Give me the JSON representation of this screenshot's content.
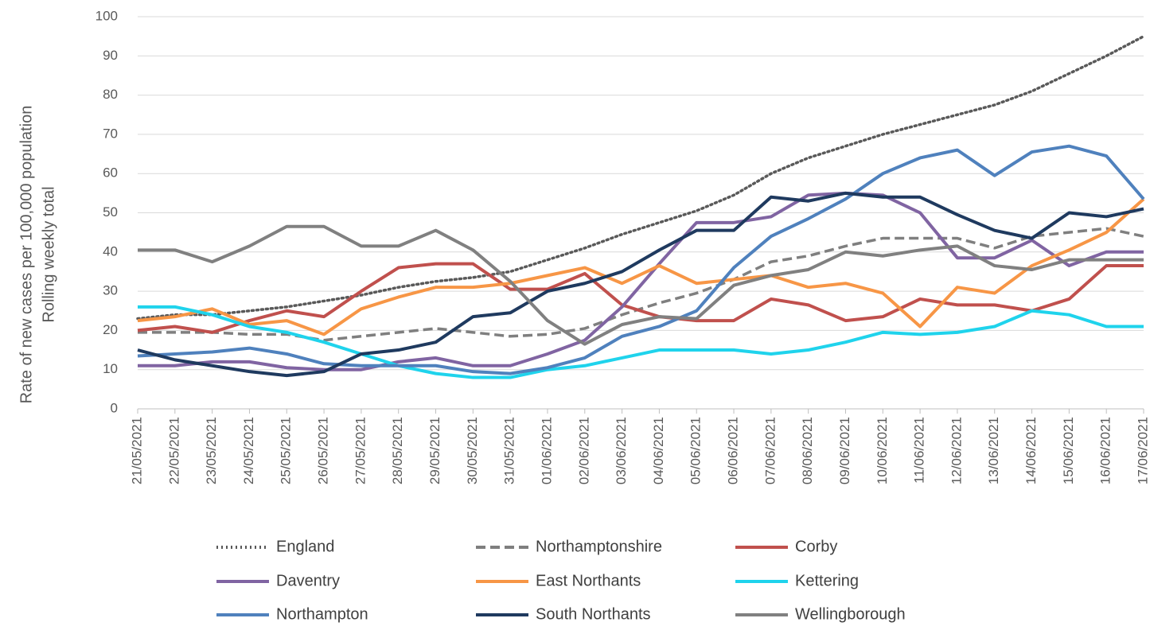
{
  "chart_data": {
    "type": "line",
    "y_label": [
      "Rate of new cases per 100,000 population",
      "Rolling weekly total"
    ],
    "categories": [
      "21/05/2021",
      "22/05/2021",
      "23/05/2021",
      "24/05/2021",
      "25/05/2021",
      "26/05/2021",
      "27/05/2021",
      "28/05/2021",
      "29/05/2021",
      "30/05/2021",
      "31/05/2021",
      "01/06/2021",
      "02/06/2021",
      "03/06/2021",
      "04/06/2021",
      "05/06/2021",
      "06/06/2021",
      "07/06/2021",
      "08/06/2021",
      "09/06/2021",
      "10/06/2021",
      "11/06/2021",
      "12/06/2021",
      "13/06/2021",
      "14/06/2021",
      "15/06/2021",
      "16/06/2021",
      "17/06/2021"
    ],
    "ylim": [
      0,
      100
    ],
    "yticks": [
      0,
      10,
      20,
      30,
      40,
      50,
      60,
      70,
      80,
      90,
      100
    ],
    "grid": true,
    "legend": "bottom",
    "series": [
      {
        "name": "England",
        "color": "#595959",
        "style": "dotted",
        "values": [
          23,
          24,
          24,
          25,
          26,
          27.5,
          29,
          31,
          32.5,
          33.5,
          35,
          38,
          41,
          44.5,
          47.5,
          50.5,
          54.5,
          60,
          64,
          67,
          70,
          72.5,
          75,
          77.5,
          81,
          85.5,
          90,
          95
        ]
      },
      {
        "name": "Northamptonshire",
        "color": "#7f7f7f",
        "style": "dashed",
        "values": [
          19.5,
          19.5,
          19.5,
          19,
          19,
          17.5,
          18.5,
          19.5,
          20.5,
          19.5,
          18.5,
          19,
          20.5,
          24,
          27,
          29.5,
          33,
          37.5,
          39,
          41.5,
          43.5,
          43.5,
          43.5,
          41,
          44,
          45,
          46,
          44
        ]
      },
      {
        "name": "Corby",
        "color": "#c0504d",
        "style": "solid",
        "values": [
          20,
          21,
          19.5,
          22.5,
          25,
          23.5,
          30,
          36,
          37,
          37,
          30.5,
          30.5,
          34.5,
          26.5,
          23.5,
          22.5,
          22.5,
          28,
          26.5,
          22.5,
          23.5,
          28,
          26.5,
          26.5,
          25,
          28,
          36.5,
          36.5
        ]
      },
      {
        "name": "Daventry",
        "color": "#8064a2",
        "style": "solid",
        "values": [
          11,
          11,
          12,
          12,
          10.5,
          10,
          10,
          12,
          13,
          11,
          11,
          14,
          17.5,
          26,
          37,
          47.5,
          47.5,
          49,
          54.5,
          55,
          54.5,
          50,
          38.5,
          38.5,
          43,
          36.5,
          40,
          40
        ]
      },
      {
        "name": "East Northants",
        "color": "#f79646",
        "style": "solid",
        "values": [
          22.5,
          23.5,
          25.5,
          21.5,
          22.5,
          19,
          25.5,
          28.5,
          31,
          31,
          32,
          34,
          36,
          32,
          36.5,
          32,
          33,
          34,
          31,
          32,
          29.5,
          21,
          31,
          29.5,
          36.5,
          40.5,
          45,
          53.5
        ]
      },
      {
        "name": "Kettering",
        "color": "#1fd3ec",
        "style": "solid",
        "values": [
          26,
          26,
          24,
          21,
          19.5,
          17,
          14,
          11,
          9,
          8,
          8,
          10,
          11,
          13,
          15,
          15,
          15,
          14,
          15,
          17,
          19.5,
          19,
          19.5,
          21,
          25,
          24,
          21,
          21
        ]
      },
      {
        "name": "Northampton",
        "color": "#4f81bd",
        "style": "solid",
        "values": [
          13.5,
          14,
          14.5,
          15.5,
          14,
          11.5,
          11,
          11,
          11,
          9.5,
          9,
          10.5,
          13,
          18.5,
          21,
          25,
          36,
          44,
          48.5,
          53.5,
          60,
          64,
          66,
          59.5,
          65.5,
          67,
          64.5,
          53.5
        ]
      },
      {
        "name": "South Northants",
        "color": "#1f3a5f",
        "style": "solid",
        "values": [
          15,
          12.5,
          11,
          9.5,
          8.5,
          9.5,
          14,
          15,
          17,
          23.5,
          24.5,
          30,
          32,
          35,
          40.5,
          45.5,
          45.5,
          54,
          53,
          55,
          54,
          54,
          49.5,
          45.5,
          43.5,
          50,
          49,
          51
        ]
      },
      {
        "name": "Wellingborough",
        "color": "#808080",
        "style": "solid",
        "values": [
          40.5,
          40.5,
          37.5,
          41.5,
          46.5,
          46.5,
          41.5,
          41.5,
          45.5,
          40.5,
          32.5,
          22.5,
          16.5,
          21.5,
          23.5,
          23,
          31.5,
          34,
          35.5,
          40,
          39,
          40.5,
          41.5,
          36.5,
          35.5,
          38,
          38,
          38
        ]
      }
    ]
  }
}
